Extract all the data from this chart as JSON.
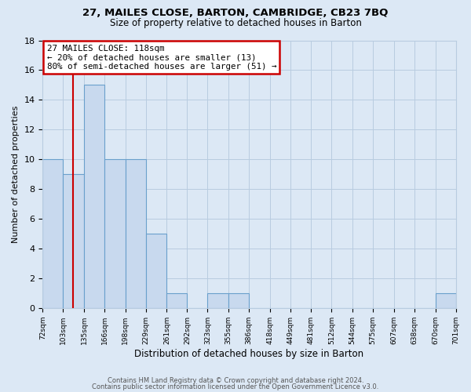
{
  "title": "27, MAILES CLOSE, BARTON, CAMBRIDGE, CB23 7BQ",
  "subtitle": "Size of property relative to detached houses in Barton",
  "xlabel": "Distribution of detached houses by size in Barton",
  "ylabel": "Number of detached properties",
  "bin_edges": [
    72,
    103,
    135,
    166,
    198,
    229,
    261,
    292,
    323,
    355,
    386,
    418,
    449,
    481,
    512,
    544,
    575,
    607,
    638,
    670,
    701
  ],
  "bin_counts": [
    10,
    9,
    15,
    10,
    10,
    5,
    1,
    0,
    1,
    1,
    0,
    0,
    0,
    0,
    0,
    0,
    0,
    0,
    0,
    1
  ],
  "tick_labels": [
    "72sqm",
    "103sqm",
    "135sqm",
    "166sqm",
    "198sqm",
    "229sqm",
    "261sqm",
    "292sqm",
    "323sqm",
    "355sqm",
    "386sqm",
    "418sqm",
    "449sqm",
    "481sqm",
    "512sqm",
    "544sqm",
    "575sqm",
    "607sqm",
    "638sqm",
    "670sqm",
    "701sqm"
  ],
  "bar_color": "#c8d9ee",
  "bar_edge_color": "#6aa0cc",
  "grid_color": "#b8cce0",
  "background_color": "#dce8f5",
  "red_line_x": 118,
  "annotation_title": "27 MAILES CLOSE: 118sqm",
  "annotation_line1": "← 20% of detached houses are smaller (13)",
  "annotation_line2": "80% of semi-detached houses are larger (51) →",
  "annotation_box_color": "#ffffff",
  "annotation_border_color": "#cc0000",
  "red_line_color": "#cc0000",
  "ylim": [
    0,
    18
  ],
  "yticks": [
    0,
    2,
    4,
    6,
    8,
    10,
    12,
    14,
    16,
    18
  ],
  "footer1": "Contains HM Land Registry data © Crown copyright and database right 2024.",
  "footer2": "Contains public sector information licensed under the Open Government Licence v3.0."
}
